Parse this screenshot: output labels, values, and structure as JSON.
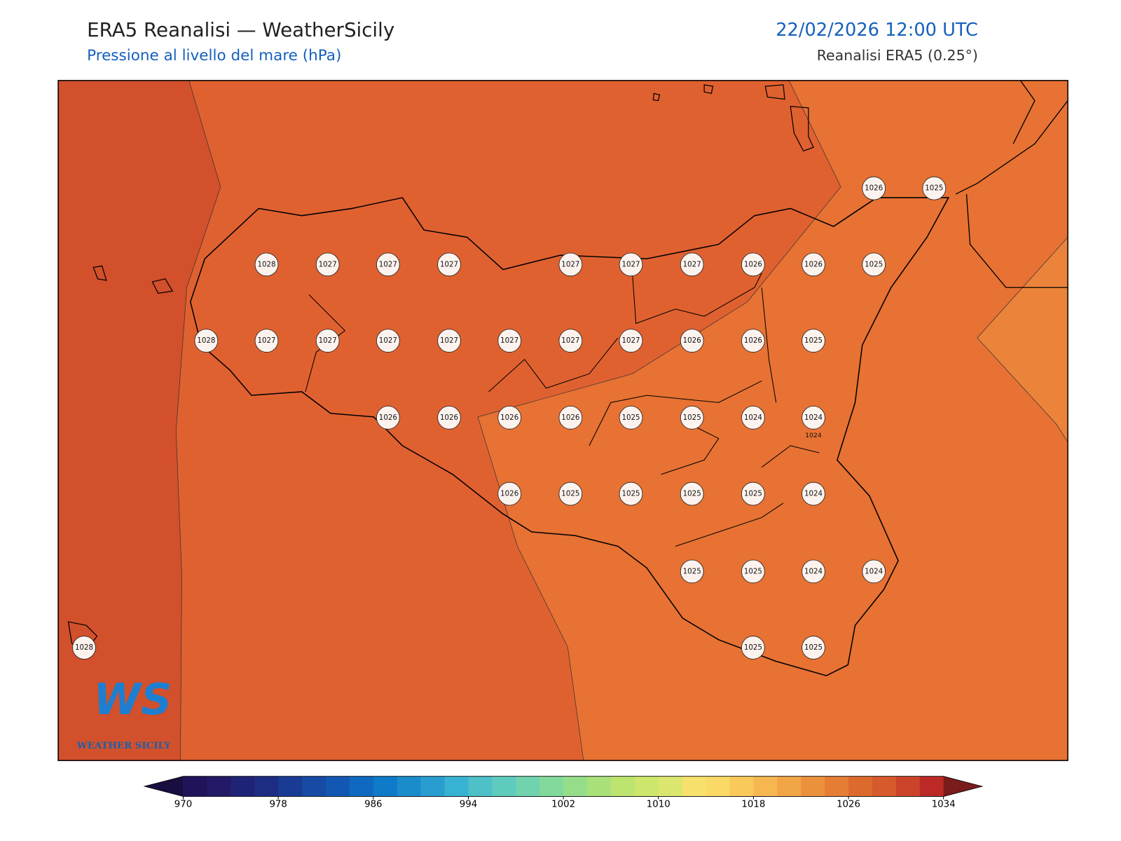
{
  "header": {
    "title": "ERA5 Reanalisi — WeatherSicily",
    "subtitle": "Pressione al livello del mare (hPa)",
    "datetime": "22/02/2026 12:00 UTC",
    "source": "Reanalisi ERA5 (0.25°)"
  },
  "stations": [
    1026,
    1025,
    1028,
    1027,
    1027,
    1027,
    1027,
    1027,
    1027,
    1026,
    1026,
    1025,
    1028,
    1027,
    1027,
    1027,
    1027,
    1027,
    1027,
    1027,
    1026,
    1026,
    1025,
    1026,
    1026,
    1026,
    1026,
    1025,
    1025,
    1024,
    1024,
    1026,
    1025,
    1025,
    1025,
    1025,
    1024,
    1025,
    1025,
    1024,
    1024,
    1028,
    1025,
    1025
  ],
  "contour_label": 1024,
  "logo": {
    "mark": "WS",
    "text": "WEATHER SICILY"
  },
  "colorbar": {
    "ticks": [
      970,
      978,
      986,
      994,
      1002,
      1010,
      1018,
      1026,
      1034
    ],
    "colors": [
      "#21135a",
      "#221a66",
      "#1f2375",
      "#1d2d84",
      "#193b94",
      "#164aa3",
      "#1258b3",
      "#0f69c0",
      "#0f7ac8",
      "#1a8ccc",
      "#2a9dd0",
      "#38b2d2",
      "#4dc0c8",
      "#5ecbbd",
      "#70d3ad",
      "#82d99c",
      "#96dd8a",
      "#a9e07a",
      "#bce46e",
      "#cde66c",
      "#dbe66f",
      "#f7e16c",
      "#fbd967",
      "#f9c95c",
      "#f6b751",
      "#f1a546",
      "#eb913c",
      "#e57d34",
      "#dd6a2d",
      "#d65a2b",
      "#cb4429",
      "#bb2a26"
    ],
    "under": "#1a0d40",
    "over": "#7a1c1c"
  }
}
